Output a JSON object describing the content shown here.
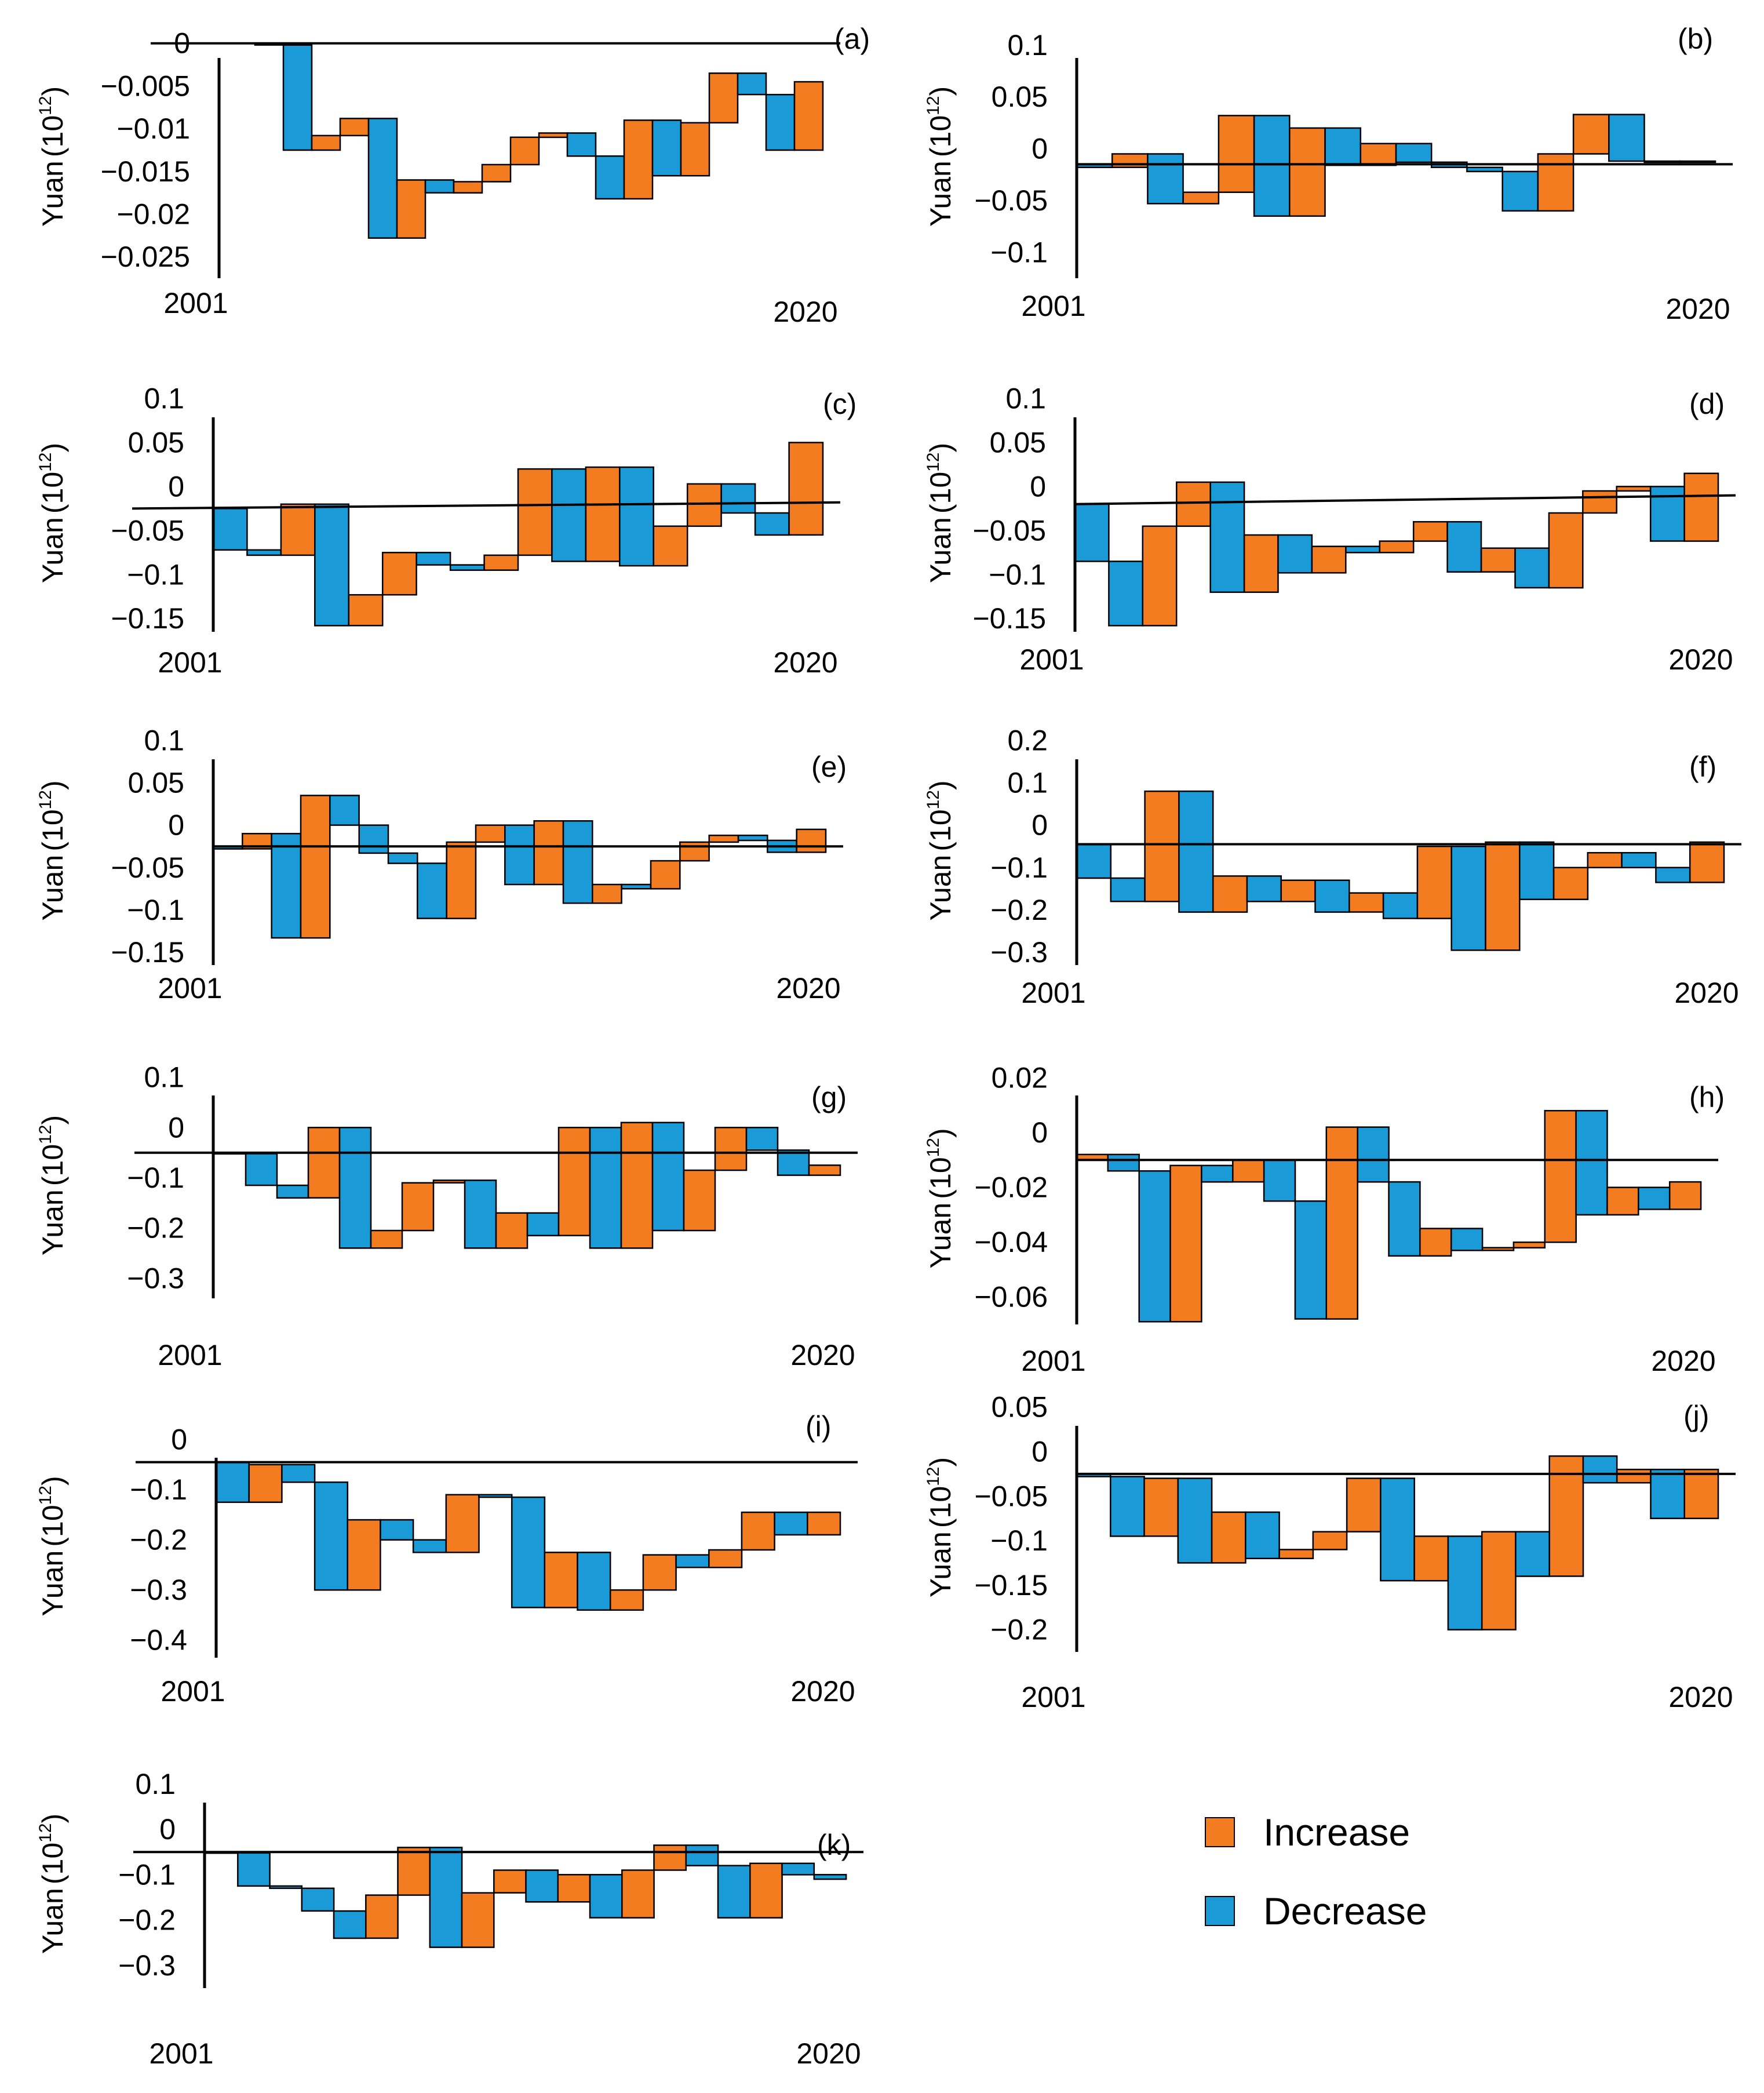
{
  "colors": {
    "increase": "#F47C20",
    "decrease": "#1A9AD6",
    "line": "#000000"
  },
  "legend": [
    {
      "name": "Increase",
      "color": "#F47C20"
    },
    {
      "name": "Decrease",
      "color": "#1A9AD6"
    }
  ],
  "chart_data": [
    {
      "id": "a",
      "label": "(a)",
      "type": "bar",
      "title": "",
      "xlabel": "",
      "ylabel_main": "Yuan",
      "ylabel_unit": "(10",
      "ylabel_exp": "12",
      "ylabel_close": ")",
      "x_start": "2001",
      "x_end": "2020",
      "yticks": [
        {
          "label": "0",
          "v": 0
        },
        {
          "label": "−0.005",
          "v": -0.005
        },
        {
          "label": "−0.01",
          "v": -0.01
        },
        {
          "label": "−0.015",
          "v": -0.015
        },
        {
          "label": "−0.02",
          "v": -0.02
        },
        {
          "label": "−0.025",
          "v": -0.025
        }
      ],
      "ylim": [
        -0.0275,
        0.001
      ],
      "baseline": 0,
      "levels": [
        0.0,
        -0.0002,
        -0.0125,
        -0.0108,
        -0.0088,
        -0.0228,
        -0.016,
        -0.0175,
        -0.0162,
        -0.0142,
        -0.011,
        -0.0105,
        -0.0132,
        -0.0182,
        -0.009,
        -0.0155,
        -0.0093,
        -0.0035,
        -0.006,
        -0.0125,
        -0.0045
      ]
    },
    {
      "id": "b",
      "label": "(b)",
      "type": "bar",
      "title": "",
      "xlabel": "",
      "ylabel_main": "Yuan",
      "ylabel_unit": "(10",
      "ylabel_exp": "12",
      "ylabel_close": ")",
      "x_start": "2001",
      "x_end": "2020",
      "yticks": [
        {
          "label": "0.1",
          "v": 0.1
        },
        {
          "label": "0.05",
          "v": 0.05
        },
        {
          "label": "0",
          "v": 0
        },
        {
          "label": "−0.05",
          "v": -0.05
        },
        {
          "label": "−0.1",
          "v": -0.1
        }
      ],
      "ylim": [
        -0.125,
        0.11
      ],
      "baseline": -0.015,
      "levels": [
        -0.015,
        -0.018,
        -0.005,
        -0.053,
        -0.042,
        0.032,
        -0.065,
        0.02,
        -0.016,
        0.005,
        -0.013,
        -0.018,
        -0.022,
        -0.06,
        -0.005,
        0.033,
        -0.012,
        -0.013,
        -0.012
      ]
    },
    {
      "id": "c",
      "label": "(c)",
      "type": "bar",
      "title": "",
      "xlabel": "",
      "ylabel_main": "Yuan",
      "ylabel_unit": "(10",
      "ylabel_exp": "12",
      "ylabel_close": ")",
      "x_start": "2001",
      "x_end": "2020",
      "yticks": [
        {
          "label": "0.1",
          "v": 0.1
        },
        {
          "label": "0.05",
          "v": 0.05
        },
        {
          "label": "0",
          "v": 0
        },
        {
          "label": "−0.05",
          "v": -0.05
        },
        {
          "label": "−0.1",
          "v": -0.1
        },
        {
          "label": "−0.15",
          "v": -0.15
        }
      ],
      "ylim": [
        -0.165,
        0.105
      ],
      "baseline": -0.025,
      "baseline_end": -0.018,
      "levels": [
        -0.025,
        -0.072,
        -0.078,
        -0.02,
        -0.158,
        -0.123,
        -0.075,
        -0.089,
        -0.095,
        -0.078,
        0.02,
        -0.085,
        0.022,
        -0.09,
        -0.045,
        0.003,
        -0.03,
        -0.055,
        0.05
      ]
    },
    {
      "id": "d",
      "label": "(d)",
      "type": "bar",
      "title": "",
      "xlabel": "",
      "ylabel_main": "Yuan",
      "ylabel_unit": "(10",
      "ylabel_exp": "12",
      "ylabel_close": ")",
      "x_start": "2001",
      "x_end": "2020",
      "yticks": [
        {
          "label": "0.1",
          "v": 0.1
        },
        {
          "label": "0.05",
          "v": 0.05
        },
        {
          "label": "0",
          "v": 0
        },
        {
          "label": "−0.05",
          "v": -0.05
        },
        {
          "label": "−0.1",
          "v": -0.1
        },
        {
          "label": "−0.15",
          "v": -0.15
        }
      ],
      "ylim": [
        -0.165,
        0.105
      ],
      "baseline": -0.02,
      "baseline_end": -0.01,
      "levels": [
        -0.02,
        -0.085,
        -0.158,
        -0.045,
        0.005,
        -0.12,
        -0.055,
        -0.098,
        -0.068,
        -0.075,
        -0.062,
        -0.04,
        -0.097,
        -0.07,
        -0.115,
        -0.03,
        -0.005,
        0.0,
        -0.062,
        0.015
      ]
    },
    {
      "id": "e",
      "label": "(e)",
      "type": "bar",
      "title": "",
      "xlabel": "",
      "ylabel_main": "Yuan",
      "ylabel_unit": "(10",
      "ylabel_exp": "12",
      "ylabel_close": ")",
      "x_start": "2001",
      "x_end": "2020",
      "yticks": [
        {
          "label": "0.1",
          "v": 0.1
        },
        {
          "label": "0.05",
          "v": 0.05
        },
        {
          "label": "0",
          "v": 0
        },
        {
          "label": "−0.05",
          "v": -0.05
        },
        {
          "label": "−0.1",
          "v": -0.1
        },
        {
          "label": "−0.15",
          "v": -0.15
        }
      ],
      "ylim": [
        -0.165,
        0.105
      ],
      "baseline": -0.025,
      "levels": [
        -0.025,
        -0.028,
        -0.01,
        -0.133,
        0.035,
        0.0,
        -0.033,
        -0.045,
        -0.11,
        -0.02,
        0.0,
        -0.07,
        0.005,
        -0.092,
        -0.07,
        -0.075,
        -0.042,
        -0.02,
        -0.012,
        -0.018,
        -0.032,
        -0.005
      ]
    },
    {
      "id": "f",
      "label": "(f)",
      "type": "bar",
      "title": "",
      "xlabel": "",
      "ylabel_main": "Yuan",
      "ylabel_unit": "(10",
      "ylabel_exp": "12",
      "ylabel_close": ")",
      "x_start": "2001",
      "x_end": "2020",
      "yticks": [
        {
          "label": "0.2",
          "v": 0.2
        },
        {
          "label": "0.1",
          "v": 0.1
        },
        {
          "label": "0",
          "v": 0
        },
        {
          "label": "−0.1",
          "v": -0.1
        },
        {
          "label": "−0.2",
          "v": -0.2
        },
        {
          "label": "−0.3",
          "v": -0.3
        }
      ],
      "ylim": [
        -0.33,
        0.21
      ],
      "baseline": -0.045,
      "levels": [
        -0.045,
        -0.125,
        -0.18,
        0.08,
        -0.205,
        -0.12,
        -0.18,
        -0.13,
        -0.205,
        -0.16,
        -0.22,
        -0.05,
        -0.295,
        -0.04,
        -0.175,
        -0.1,
        -0.065,
        -0.1,
        -0.135,
        -0.04
      ]
    },
    {
      "id": "g",
      "label": "(g)",
      "type": "bar",
      "title": "",
      "xlabel": "",
      "ylabel_main": "Yuan",
      "ylabel_unit": "(10",
      "ylabel_exp": "12",
      "ylabel_close": ")",
      "x_start": "2001",
      "x_end": "2020",
      "yticks": [
        {
          "label": "0.1",
          "v": 0.1
        },
        {
          "label": "0",
          "v": 0
        },
        {
          "label": "−0.1",
          "v": -0.1
        },
        {
          "label": "−0.2",
          "v": -0.2
        },
        {
          "label": "−0.3",
          "v": -0.3
        }
      ],
      "ylim": [
        -0.34,
        0.11
      ],
      "baseline": -0.05,
      "levels": [
        -0.05,
        -0.052,
        -0.115,
        -0.14,
        0.0,
        -0.24,
        -0.205,
        -0.11,
        -0.105,
        -0.24,
        -0.17,
        -0.215,
        0.0,
        -0.24,
        0.01,
        -0.205,
        -0.085,
        0.0,
        -0.045,
        -0.095,
        -0.075
      ]
    },
    {
      "id": "h",
      "label": "(h)",
      "type": "bar",
      "title": "",
      "xlabel": "",
      "ylabel_main": "Yuan",
      "ylabel_unit": "(10",
      "ylabel_exp": "12",
      "ylabel_close": ")",
      "x_start": "2001",
      "x_end": "2020",
      "yticks": [
        {
          "label": "0.02",
          "v": 0.02
        },
        {
          "label": "0",
          "v": 0
        },
        {
          "label": "−0.02",
          "v": -0.02
        },
        {
          "label": "−0.04",
          "v": -0.04
        },
        {
          "label": "−0.06",
          "v": -0.06
        }
      ],
      "ylim": [
        -0.07,
        0.022
      ],
      "baseline": -0.01,
      "levels": [
        -0.01,
        -0.008,
        -0.014,
        -0.069,
        -0.012,
        -0.018,
        -0.01,
        -0.025,
        -0.068,
        0.002,
        -0.018,
        -0.045,
        -0.035,
        -0.043,
        -0.042,
        -0.04,
        0.008,
        -0.03,
        -0.02,
        -0.028,
        -0.018
      ]
    },
    {
      "id": "i",
      "label": "(i)",
      "type": "bar",
      "title": "",
      "xlabel": "",
      "ylabel_main": "Yuan",
      "ylabel_unit": "(10",
      "ylabel_exp": "12",
      "ylabel_close": ")",
      "x_start": "2001",
      "x_end": "2020",
      "yticks": [
        {
          "label": "0",
          "v": 0
        },
        {
          "label": "−0.1",
          "v": -0.1
        },
        {
          "label": "−0.2",
          "v": -0.2
        },
        {
          "label": "−0.3",
          "v": -0.3
        },
        {
          "label": "−0.4",
          "v": -0.4
        }
      ],
      "ylim": [
        -0.435,
        0.01
      ],
      "baseline": -0.045,
      "levels": [
        -0.045,
        -0.125,
        -0.05,
        -0.085,
        -0.3,
        -0.16,
        -0.2,
        -0.225,
        -0.11,
        -0.115,
        -0.335,
        -0.225,
        -0.34,
        -0.3,
        -0.23,
        -0.255,
        -0.22,
        -0.145,
        -0.19,
        -0.145
      ]
    },
    {
      "id": "j",
      "label": "(j)",
      "type": "bar",
      "title": "",
      "xlabel": "",
      "ylabel_main": "Yuan",
      "ylabel_unit": "(10",
      "ylabel_exp": "12",
      "ylabel_close": ")",
      "x_start": "2001",
      "x_end": "2020",
      "yticks": [
        {
          "label": "0.05",
          "v": 0.05
        },
        {
          "label": "0",
          "v": 0
        },
        {
          "label": "−0.05",
          "v": -0.05
        },
        {
          "label": "−0.1",
          "v": -0.1
        },
        {
          "label": "−0.15",
          "v": -0.15
        },
        {
          "label": "−0.2",
          "v": -0.2
        }
      ],
      "ylim": [
        -0.225,
        0.055
      ],
      "baseline": -0.025,
      "levels": [
        -0.025,
        -0.028,
        -0.095,
        -0.03,
        -0.125,
        -0.068,
        -0.12,
        -0.11,
        -0.09,
        -0.03,
        -0.145,
        -0.095,
        -0.2,
        -0.09,
        -0.14,
        -0.005,
        -0.035,
        -0.02,
        -0.075,
        -0.02
      ]
    },
    {
      "id": "k",
      "label": "(k)",
      "type": "bar",
      "title": "",
      "xlabel": "",
      "ylabel_main": "Yuan",
      "ylabel_unit": "(10",
      "ylabel_exp": "12",
      "ylabel_close": ")",
      "x_start": "2001",
      "x_end": "2020",
      "yticks": [
        {
          "label": "0.1",
          "v": 0.1
        },
        {
          "label": "0",
          "v": 0
        },
        {
          "label": "−0.1",
          "v": -0.1
        },
        {
          "label": "−0.2",
          "v": -0.2
        },
        {
          "label": "−0.3",
          "v": -0.3
        }
      ],
      "ylim": [
        -0.35,
        0.11
      ],
      "baseline": -0.05,
      "levels": [
        -0.05,
        -0.052,
        -0.125,
        -0.13,
        -0.18,
        -0.24,
        -0.145,
        -0.04,
        -0.26,
        -0.14,
        -0.09,
        -0.16,
        -0.1,
        -0.195,
        -0.09,
        -0.035,
        -0.08,
        -0.195,
        -0.075,
        -0.1,
        -0.11
      ]
    }
  ]
}
